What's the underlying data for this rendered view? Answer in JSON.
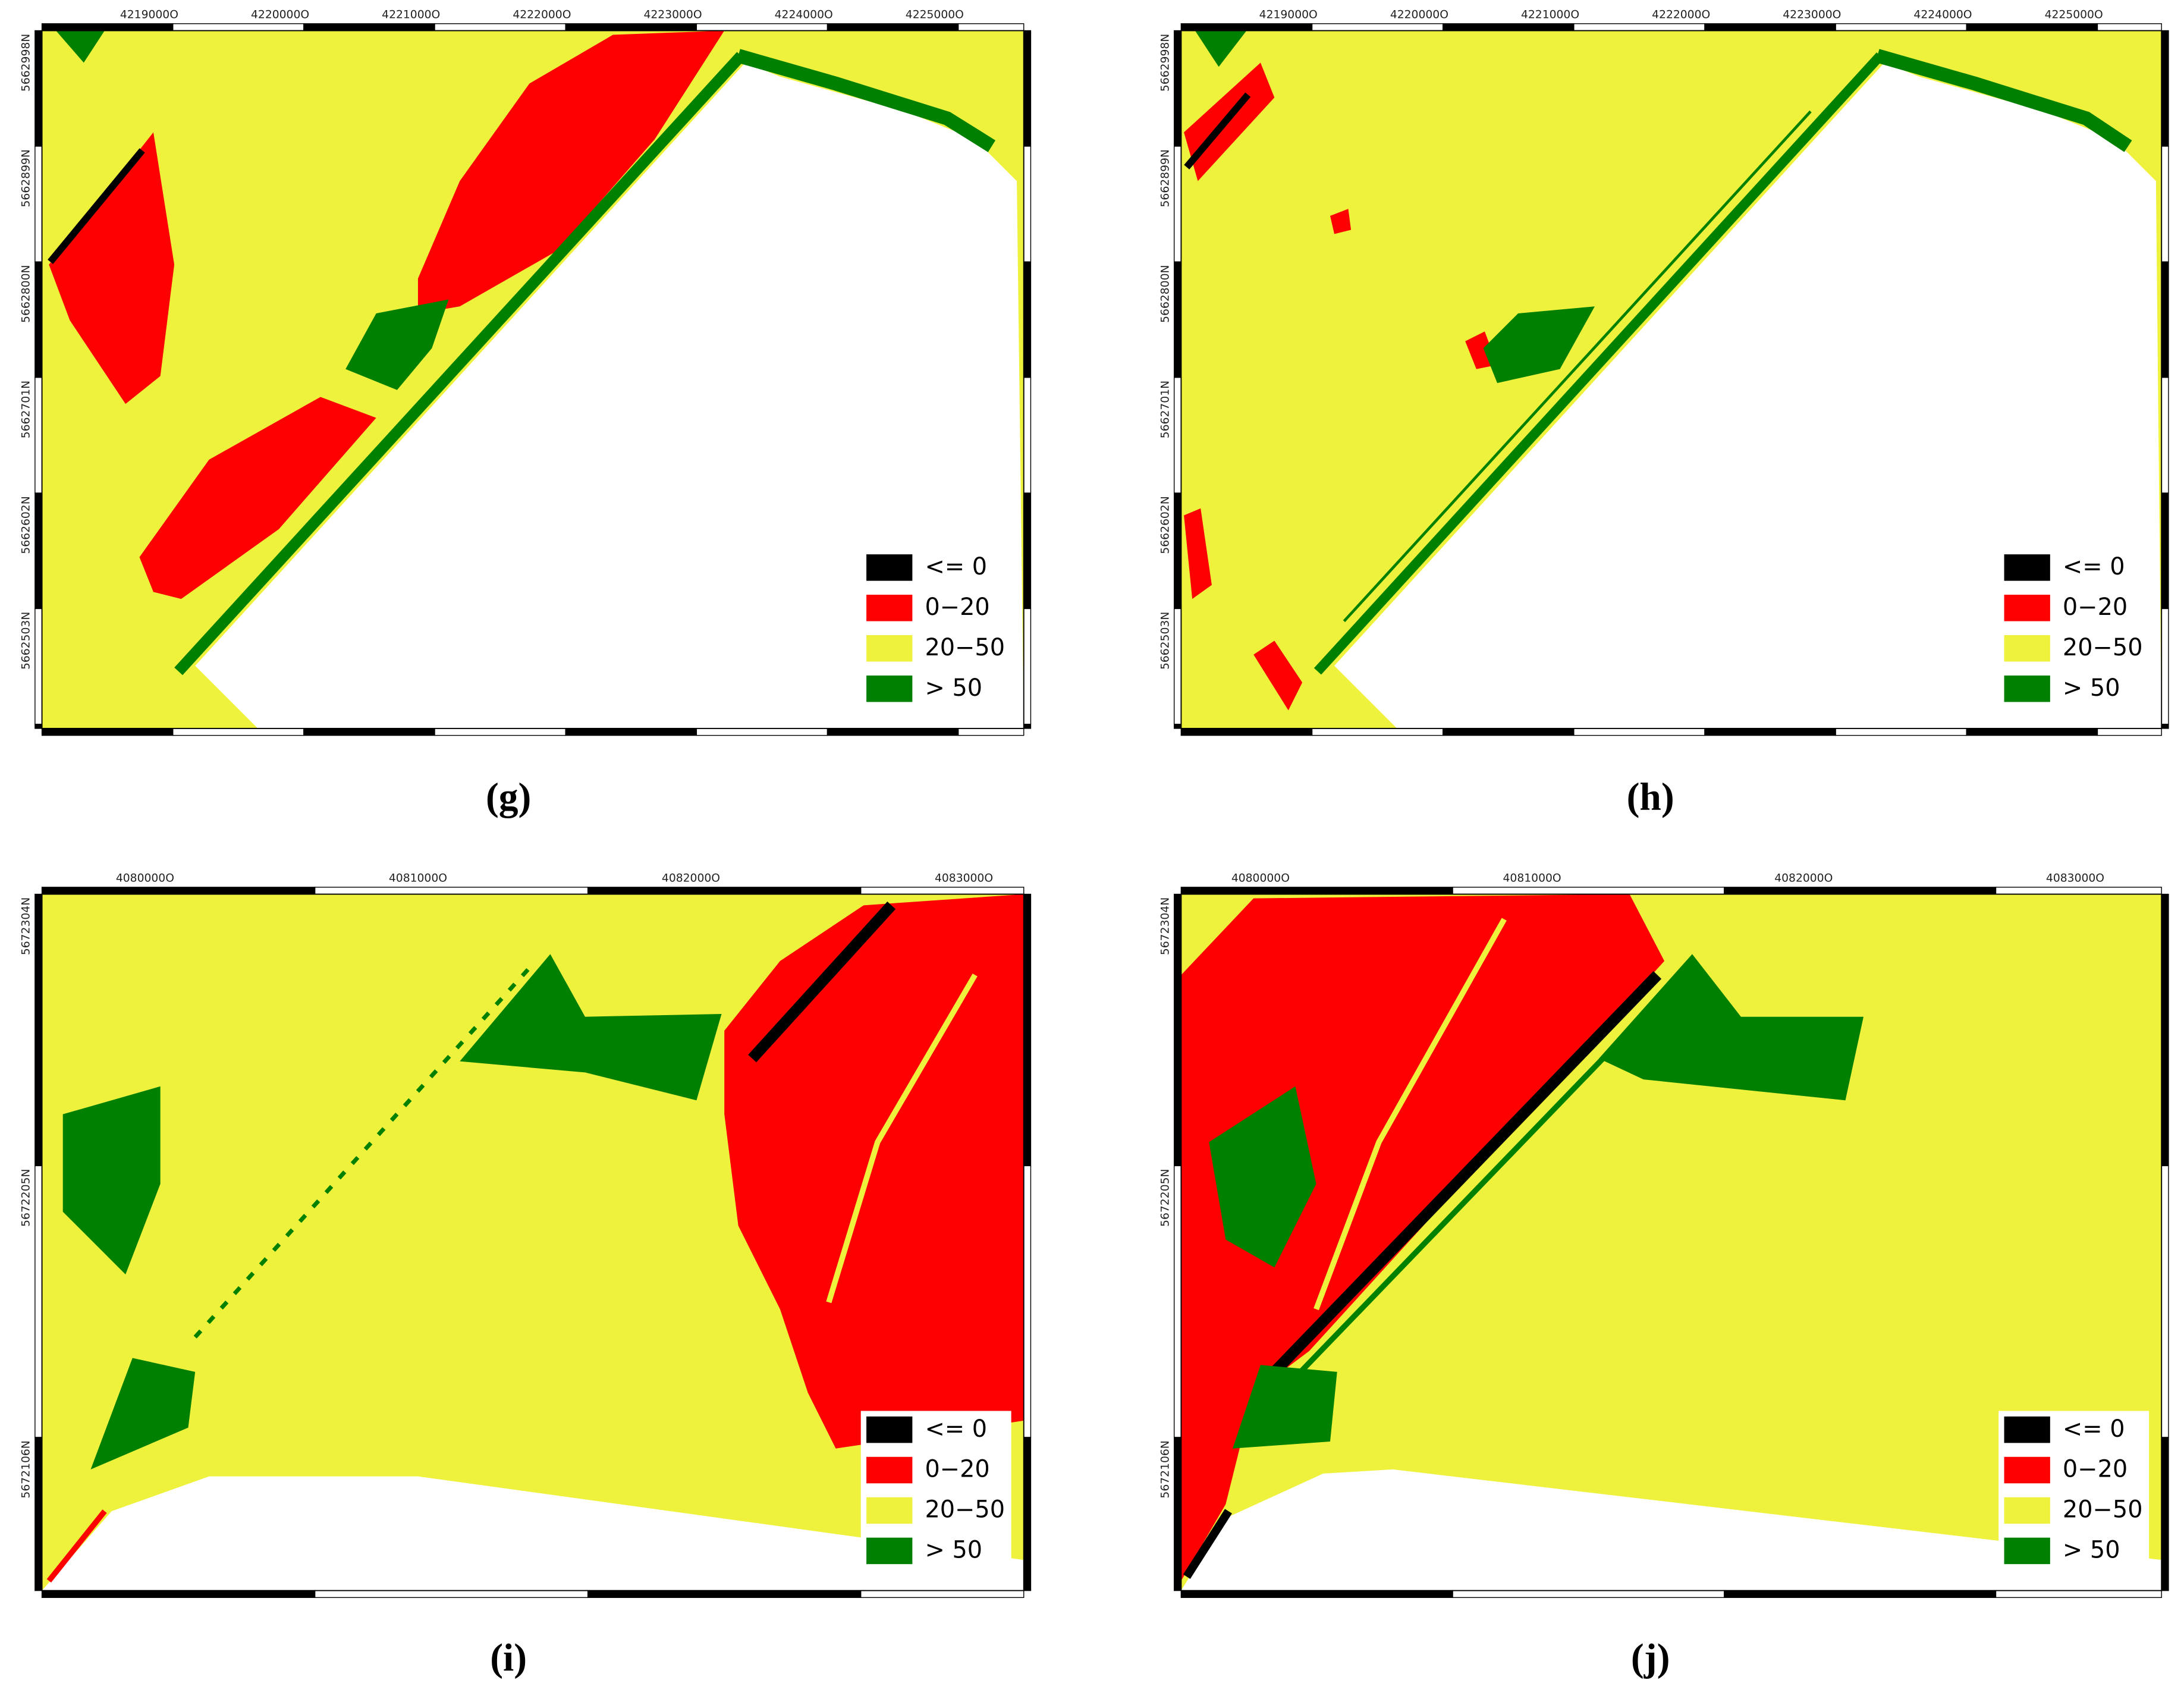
{
  "legend": [
    {
      "label": "<= 0",
      "color": "#000000"
    },
    {
      "label": "0−20",
      "color": "#ff0000"
    },
    {
      "label": "20−50",
      "color": "#eef23c"
    },
    {
      "label": "> 50",
      "color": "#008000"
    }
  ],
  "panels": [
    {
      "label": "(g)",
      "x_labels": [
        "4219000O",
        "4220000O",
        "4221000O",
        "4222000O",
        "4223000O",
        "4224000O",
        "4225000O"
      ],
      "y_labels": [
        "5662998N",
        "5662899N",
        "5662800N",
        "5662701N",
        "5662602N",
        "5662503N"
      ]
    },
    {
      "label": "(h)",
      "x_labels": [
        "4219000O",
        "4220000O",
        "4221000O",
        "4222000O",
        "4223000O",
        "4224000O",
        "4225000O"
      ],
      "y_labels": [
        "5662998N",
        "5662899N",
        "5662800N",
        "5662701N",
        "5662602N",
        "5662503N"
      ]
    },
    {
      "label": "(i)",
      "x_labels": [
        "4080000O",
        "4081000O",
        "4082000O",
        "4083000O"
      ],
      "y_labels": [
        "5672304N",
        "5672205N",
        "5672106N"
      ]
    },
    {
      "label": "(j)",
      "x_labels": [
        "4080000O",
        "4081000O",
        "4082000O",
        "4083000O"
      ],
      "y_labels": [
        "5672304N",
        "5672205N",
        "5672106N"
      ]
    }
  ]
}
